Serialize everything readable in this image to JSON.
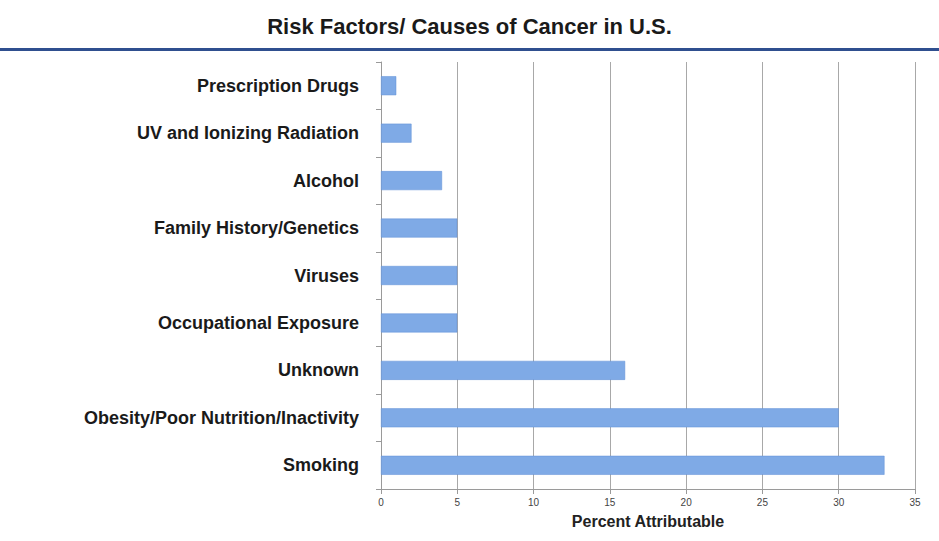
{
  "chart_data": {
    "type": "bar",
    "title": "Risk Factors/ Causes of Cancer in U.S.",
    "orientation": "horizontal",
    "categories": [
      "Prescription Drugs",
      "UV and Ionizing Radiation",
      "Alcohol",
      "Family History/Genetics",
      "Viruses",
      "Occupational Exposure",
      "Unknown",
      "Obesity/Poor Nutrition/Inactivity",
      "Smoking"
    ],
    "values": [
      1,
      2,
      4,
      5,
      5,
      5,
      16,
      30,
      33
    ],
    "color": "#7faae6",
    "xlabel": "Percent Attributable",
    "xlim": [
      0,
      35
    ],
    "xticks": [
      0,
      5,
      10,
      15,
      20,
      25,
      30,
      35
    ],
    "grid": true
  }
}
